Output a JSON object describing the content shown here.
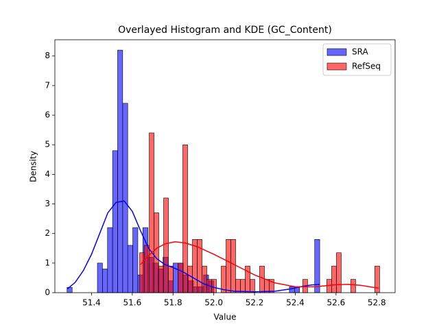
{
  "chart_data": {
    "type": "histogram",
    "title": "Overlayed Histogram and KDE (GC_Content)",
    "x_label": "Value",
    "y_label": "Density",
    "xlim": [
      51.22,
      52.89
    ],
    "ylim": [
      0,
      8.55
    ],
    "xticks": [
      51.4,
      51.6,
      51.8,
      {
        "value": 52,
        "label": "52.0"
      },
      52.2,
      52.4,
      52.6,
      52.8
    ],
    "yticks": [
      0,
      1,
      2,
      3,
      4,
      5,
      6,
      7,
      8
    ],
    "legend": "upper right",
    "series": [
      {
        "name": "SRA",
        "color": "#0000ff",
        "bins": [
          51.28,
          51.3048,
          51.3296,
          51.3544,
          51.3792,
          51.404,
          51.4288,
          51.4536,
          51.4784,
          51.5032,
          51.528,
          51.5528,
          51.5776,
          51.6024,
          51.6272,
          51.652,
          51.6768,
          51.7016,
          51.7264,
          51.7512,
          51.776,
          51.8008,
          51.8256,
          51.8504,
          51.8752,
          51.9,
          51.9248,
          51.9496,
          51.9744,
          51.9992,
          52.024,
          52.0488,
          52.0736,
          52.0984,
          52.1232,
          52.148,
          52.1728,
          52.1976,
          52.2224,
          52.2472,
          52.272,
          52.2968,
          52.3216,
          52.3464,
          52.3712,
          52.396,
          52.4208,
          52.4456,
          52.4704,
          52.4952,
          52.52
        ],
        "values": [
          0.18,
          0,
          0,
          0,
          0,
          0,
          1.0,
          0.8,
          2.2,
          4.8,
          8.2,
          6.4,
          1.6,
          2.2,
          0.6,
          2.2,
          1.2,
          1.0,
          0.8,
          1.2,
          0.4,
          1.0,
          1.0,
          0.6,
          0.4,
          0.2,
          0.2,
          0.6,
          0.4,
          0,
          0,
          0,
          0,
          0,
          0,
          0,
          0,
          0,
          0,
          0,
          0,
          0,
          0,
          0,
          0.2,
          0.2,
          0,
          0,
          0,
          1.8
        ],
        "kde": {
          "x": [
            51.28,
            51.32,
            51.36,
            51.4,
            51.44,
            51.48,
            51.52,
            51.56,
            51.6,
            51.64,
            51.68,
            51.72,
            51.76,
            51.8,
            51.85,
            51.9,
            51.95,
            52.0,
            52.05,
            52.1,
            52.2,
            52.3,
            52.38,
            52.44,
            52.48,
            52.52
          ],
          "values": [
            0.12,
            0.35,
            0.75,
            1.3,
            2.0,
            2.7,
            3.05,
            3.1,
            2.75,
            2.1,
            1.5,
            1.15,
            0.95,
            0.85,
            0.7,
            0.5,
            0.3,
            0.18,
            0.1,
            0.05,
            0.03,
            0.05,
            0.13,
            0.22,
            0.26,
            0.28
          ]
        }
      },
      {
        "name": "RefSeq",
        "color": "#ff0000",
        "bins": [
          51.636,
          51.6596,
          51.6831,
          51.7067,
          51.7302,
          51.7538,
          51.7774,
          51.8009,
          51.8245,
          51.848,
          51.8716,
          51.8952,
          51.9187,
          51.9423,
          51.9658,
          51.9894,
          52.013,
          52.0365,
          52.0601,
          52.0836,
          52.1072,
          52.1308,
          52.1543,
          52.1779,
          52.2014,
          52.225,
          52.2486,
          52.2721,
          52.2957,
          52.3192,
          52.3428,
          52.3664,
          52.3899,
          52.4135,
          52.437,
          52.4606,
          52.4842,
          52.5077,
          52.5313,
          52.5548,
          52.5784,
          52.602,
          52.6255,
          52.6491,
          52.6726,
          52.6962,
          52.7198,
          52.7433,
          52.7669,
          52.7904,
          52.814
        ],
        "values": [
          1.35,
          1.6,
          5.4,
          2.7,
          0.9,
          3.2,
          0.9,
          0,
          1.0,
          5.0,
          0.9,
          1.8,
          1.8,
          0.9,
          0.45,
          0.45,
          0,
          0.9,
          1.8,
          1.8,
          0.45,
          0.45,
          0.9,
          0.45,
          0,
          0.9,
          0.45,
          0.45,
          0,
          0,
          0,
          0,
          0,
          0,
          0.45,
          0,
          0,
          0,
          0,
          0.45,
          0.9,
          1.35,
          0,
          0,
          0.45,
          0,
          0,
          0,
          0,
          0.9
        ],
        "kde": {
          "x": [
            51.64,
            51.68,
            51.72,
            51.76,
            51.81,
            51.86,
            51.92,
            52.0,
            52.1,
            52.2,
            52.3,
            52.4,
            52.5,
            52.6,
            52.66,
            52.72,
            52.81
          ],
          "values": [
            0.95,
            1.25,
            1.5,
            1.65,
            1.72,
            1.68,
            1.55,
            1.3,
            0.95,
            0.6,
            0.33,
            0.2,
            0.2,
            0.27,
            0.28,
            0.25,
            0.15
          ]
        }
      }
    ]
  }
}
